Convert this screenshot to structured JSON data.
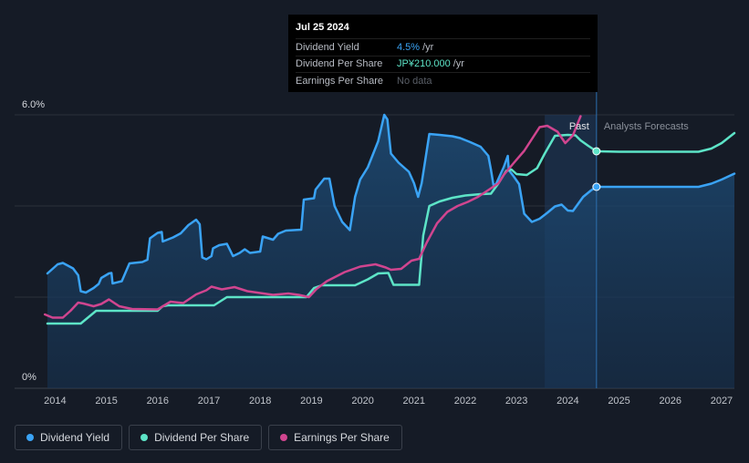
{
  "chart_data": {
    "type": "line",
    "title": "",
    "y_tick_labels": [
      "6.0%",
      "0%"
    ],
    "ylim": [
      0,
      6.0
    ],
    "x_tick_labels": [
      "2014",
      "2015",
      "2016",
      "2017",
      "2018",
      "2019",
      "2020",
      "2021",
      "2022",
      "2023",
      "2024",
      "2025",
      "2026",
      "2027"
    ],
    "xlim": [
      2013.85,
      2027.25
    ],
    "past_label": "Past",
    "forecast_label": "Analysts Forecasts",
    "highlight_range": [
      2023.55,
      2024.56
    ],
    "marker_x": 2024.56,
    "series": [
      {
        "name": "Dividend Yield",
        "color": "#3aa3f5",
        "fill": true,
        "points": [
          [
            2013.85,
            2.52
          ],
          [
            2014.05,
            2.72
          ],
          [
            2014.15,
            2.75
          ],
          [
            2014.35,
            2.63
          ],
          [
            2014.45,
            2.48
          ],
          [
            2014.5,
            2.13
          ],
          [
            2014.6,
            2.1
          ],
          [
            2014.75,
            2.2
          ],
          [
            2014.85,
            2.29
          ],
          [
            2014.9,
            2.42
          ],
          [
            2015.05,
            2.52
          ],
          [
            2015.1,
            2.53
          ],
          [
            2015.12,
            2.3
          ],
          [
            2015.3,
            2.35
          ],
          [
            2015.45,
            2.74
          ],
          [
            2015.7,
            2.77
          ],
          [
            2015.8,
            2.82
          ],
          [
            2015.85,
            3.29
          ],
          [
            2016.0,
            3.41
          ],
          [
            2016.08,
            3.43
          ],
          [
            2016.1,
            3.22
          ],
          [
            2016.3,
            3.31
          ],
          [
            2016.45,
            3.4
          ],
          [
            2016.6,
            3.58
          ],
          [
            2016.75,
            3.7
          ],
          [
            2016.82,
            3.6
          ],
          [
            2016.87,
            2.87
          ],
          [
            2016.95,
            2.83
          ],
          [
            2017.05,
            2.9
          ],
          [
            2017.08,
            3.07
          ],
          [
            2017.2,
            3.14
          ],
          [
            2017.35,
            3.17
          ],
          [
            2017.47,
            2.9
          ],
          [
            2017.6,
            2.97
          ],
          [
            2017.7,
            3.05
          ],
          [
            2017.8,
            2.97
          ],
          [
            2018.0,
            3.0
          ],
          [
            2018.05,
            3.33
          ],
          [
            2018.25,
            3.26
          ],
          [
            2018.35,
            3.39
          ],
          [
            2018.5,
            3.46
          ],
          [
            2018.8,
            3.48
          ],
          [
            2018.85,
            4.14
          ],
          [
            2019.05,
            4.17
          ],
          [
            2019.08,
            4.36
          ],
          [
            2019.25,
            4.6
          ],
          [
            2019.35,
            4.6
          ],
          [
            2019.45,
            4.0
          ],
          [
            2019.6,
            3.65
          ],
          [
            2019.75,
            3.47
          ],
          [
            2019.85,
            4.2
          ],
          [
            2019.95,
            4.58
          ],
          [
            2020.1,
            4.85
          ],
          [
            2020.3,
            5.42
          ],
          [
            2020.42,
            6.0
          ],
          [
            2020.48,
            5.9
          ],
          [
            2020.55,
            5.15
          ],
          [
            2020.7,
            4.95
          ],
          [
            2020.9,
            4.75
          ],
          [
            2021.0,
            4.5
          ],
          [
            2021.08,
            4.2
          ],
          [
            2021.15,
            4.5
          ],
          [
            2021.3,
            5.58
          ],
          [
            2021.5,
            5.56
          ],
          [
            2021.75,
            5.53
          ],
          [
            2021.9,
            5.49
          ],
          [
            2022.1,
            5.4
          ],
          [
            2022.3,
            5.3
          ],
          [
            2022.45,
            5.1
          ],
          [
            2022.5,
            4.8
          ],
          [
            2022.55,
            4.46
          ],
          [
            2022.6,
            4.48
          ],
          [
            2022.75,
            4.85
          ],
          [
            2022.83,
            5.1
          ],
          [
            2022.85,
            4.79
          ],
          [
            2022.95,
            4.64
          ],
          [
            2023.05,
            4.48
          ],
          [
            2023.15,
            3.83
          ],
          [
            2023.3,
            3.65
          ],
          [
            2023.45,
            3.72
          ],
          [
            2023.6,
            3.85
          ],
          [
            2023.75,
            3.99
          ],
          [
            2023.88,
            4.03
          ],
          [
            2024.0,
            3.9
          ],
          [
            2024.1,
            3.89
          ],
          [
            2024.3,
            4.2
          ],
          [
            2024.45,
            4.34
          ],
          [
            2024.56,
            4.42
          ],
          [
            2025.0,
            4.42
          ],
          [
            2026.0,
            4.42
          ],
          [
            2026.55,
            4.42
          ],
          [
            2026.8,
            4.49
          ],
          [
            2027.0,
            4.58
          ],
          [
            2027.25,
            4.71
          ]
        ]
      },
      {
        "name": "Dividend Per Share",
        "color": "#5de4c7",
        "fill": false,
        "points": [
          [
            2013.85,
            1.42
          ],
          [
            2014.5,
            1.42
          ],
          [
            2014.8,
            1.7
          ],
          [
            2016.0,
            1.7
          ],
          [
            2016.1,
            1.8
          ],
          [
            2016.2,
            1.82
          ],
          [
            2017.1,
            1.82
          ],
          [
            2017.35,
            2.0
          ],
          [
            2018.9,
            2.0
          ],
          [
            2019.05,
            2.2
          ],
          [
            2019.2,
            2.26
          ],
          [
            2019.85,
            2.26
          ],
          [
            2020.1,
            2.39
          ],
          [
            2020.3,
            2.52
          ],
          [
            2020.5,
            2.53
          ],
          [
            2020.6,
            2.27
          ],
          [
            2021.1,
            2.27
          ],
          [
            2021.18,
            3.35
          ],
          [
            2021.3,
            4.0
          ],
          [
            2021.5,
            4.1
          ],
          [
            2021.75,
            4.18
          ],
          [
            2022.0,
            4.23
          ],
          [
            2022.3,
            4.26
          ],
          [
            2022.5,
            4.27
          ],
          [
            2022.65,
            4.5
          ],
          [
            2022.8,
            4.77
          ],
          [
            2022.9,
            4.8
          ],
          [
            2023.0,
            4.7
          ],
          [
            2023.2,
            4.68
          ],
          [
            2023.4,
            4.83
          ],
          [
            2023.55,
            5.15
          ],
          [
            2023.75,
            5.54
          ],
          [
            2024.0,
            5.56
          ],
          [
            2024.15,
            5.55
          ],
          [
            2024.25,
            5.44
          ],
          [
            2024.4,
            5.32
          ],
          [
            2024.56,
            5.2
          ],
          [
            2025.0,
            5.19
          ],
          [
            2026.0,
            5.19
          ],
          [
            2026.55,
            5.19
          ],
          [
            2026.8,
            5.26
          ],
          [
            2027.0,
            5.38
          ],
          [
            2027.25,
            5.6
          ]
        ]
      },
      {
        "name": "Earnings Per Share",
        "color": "#d0458f",
        "fill": false,
        "points": [
          [
            2013.8,
            1.62
          ],
          [
            2013.95,
            1.55
          ],
          [
            2014.15,
            1.55
          ],
          [
            2014.3,
            1.7
          ],
          [
            2014.45,
            1.88
          ],
          [
            2014.55,
            1.86
          ],
          [
            2014.75,
            1.8
          ],
          [
            2014.9,
            1.85
          ],
          [
            2015.05,
            1.95
          ],
          [
            2015.25,
            1.8
          ],
          [
            2015.5,
            1.74
          ],
          [
            2016.0,
            1.73
          ],
          [
            2016.25,
            1.9
          ],
          [
            2016.5,
            1.87
          ],
          [
            2016.75,
            2.06
          ],
          [
            2016.95,
            2.15
          ],
          [
            2017.05,
            2.23
          ],
          [
            2017.25,
            2.17
          ],
          [
            2017.5,
            2.22
          ],
          [
            2017.75,
            2.13
          ],
          [
            2018.25,
            2.05
          ],
          [
            2018.55,
            2.08
          ],
          [
            2018.75,
            2.05
          ],
          [
            2018.95,
            2.0
          ],
          [
            2019.1,
            2.18
          ],
          [
            2019.3,
            2.35
          ],
          [
            2019.65,
            2.55
          ],
          [
            2019.95,
            2.67
          ],
          [
            2020.25,
            2.72
          ],
          [
            2020.45,
            2.65
          ],
          [
            2020.55,
            2.6
          ],
          [
            2020.75,
            2.62
          ],
          [
            2020.95,
            2.8
          ],
          [
            2021.1,
            2.84
          ],
          [
            2021.25,
            3.2
          ],
          [
            2021.45,
            3.62
          ],
          [
            2021.65,
            3.87
          ],
          [
            2021.85,
            4.0
          ],
          [
            2022.05,
            4.09
          ],
          [
            2022.25,
            4.2
          ],
          [
            2022.45,
            4.35
          ],
          [
            2022.65,
            4.5
          ],
          [
            2022.75,
            4.68
          ],
          [
            2022.95,
            4.95
          ],
          [
            2023.15,
            5.21
          ],
          [
            2023.45,
            5.73
          ],
          [
            2023.6,
            5.76
          ],
          [
            2023.8,
            5.63
          ],
          [
            2023.95,
            5.38
          ],
          [
            2024.1,
            5.55
          ],
          [
            2024.25,
            5.97
          ]
        ]
      }
    ]
  },
  "tooltip": {
    "date": "Jul 25 2024",
    "rows": [
      {
        "label": "Dividend Yield",
        "value": "4.5%",
        "unit": "/yr"
      },
      {
        "label": "Dividend Per Share",
        "value": "JP¥210.000",
        "unit": "/yr"
      },
      {
        "label": "Earnings Per Share",
        "value": "No data"
      }
    ]
  },
  "legend": [
    {
      "label": "Dividend Yield",
      "color": "#3aa3f5"
    },
    {
      "label": "Dividend Per Share",
      "color": "#5de4c7"
    },
    {
      "label": "Earnings Per Share",
      "color": "#d0458f"
    }
  ]
}
